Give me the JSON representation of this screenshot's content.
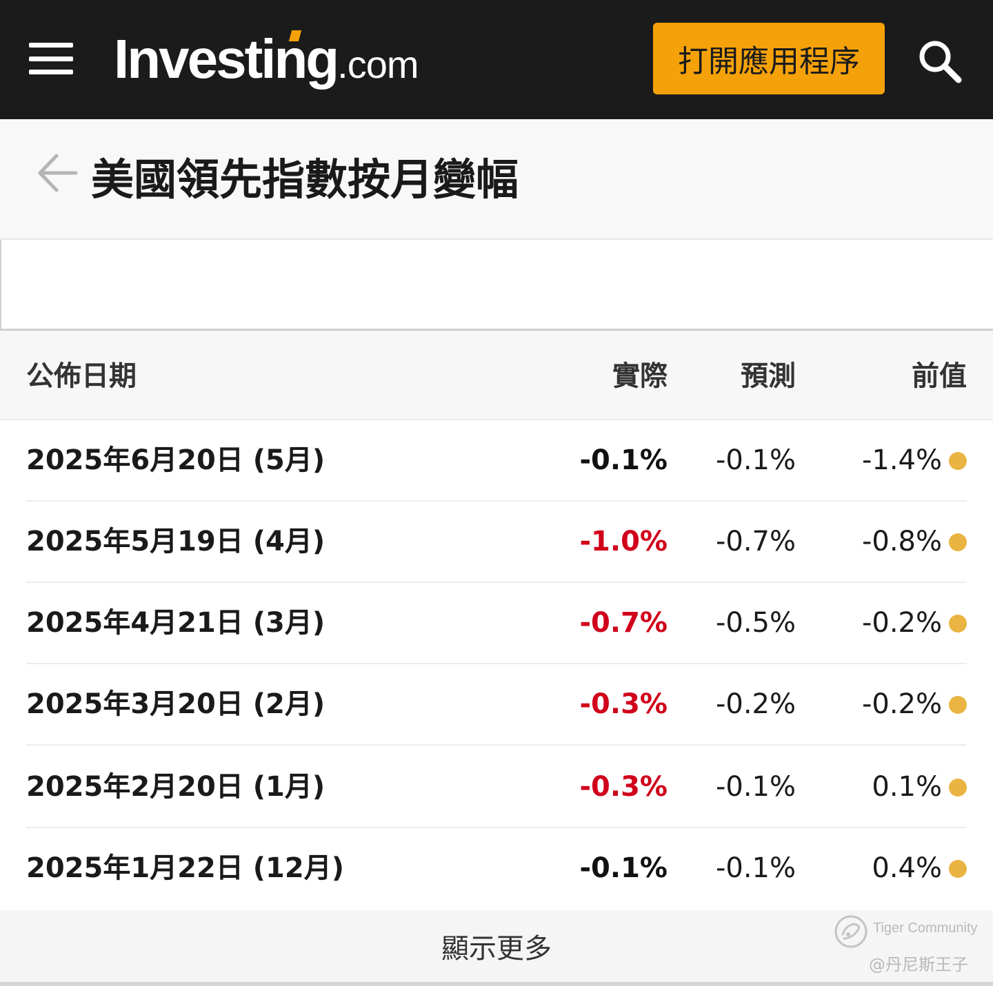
{
  "header": {
    "logo_brand": "Investing",
    "logo_tld": ".com",
    "open_app_label": "打開應用程序",
    "menu_icon": "hamburger-menu-icon",
    "search_icon": "search-icon",
    "accent_color": "#f5a20a"
  },
  "page": {
    "title": "美國領先指數按月變幅",
    "back_icon": "arrow-left-icon"
  },
  "table": {
    "columns": {
      "date": "公佈日期",
      "actual": "實際",
      "forecast": "預測",
      "previous": "前值"
    },
    "rows": [
      {
        "date": "2025年6月20日 (5月)",
        "actual": "-0.1%",
        "actual_color": "#111111",
        "forecast": "-0.1%",
        "previous": "-1.4%",
        "indicator_color": "#e9b441"
      },
      {
        "date": "2025年5月19日 (4月)",
        "actual": "-1.0%",
        "actual_color": "#d0021b",
        "forecast": "-0.7%",
        "previous": "-0.8%",
        "indicator_color": "#e9b441"
      },
      {
        "date": "2025年4月21日 (3月)",
        "actual": "-0.7%",
        "actual_color": "#d0021b",
        "forecast": "-0.5%",
        "previous": "-0.2%",
        "indicator_color": "#e9b441"
      },
      {
        "date": "2025年3月20日 (2月)",
        "actual": "-0.3%",
        "actual_color": "#d0021b",
        "forecast": "-0.2%",
        "previous": "-0.2%",
        "indicator_color": "#e9b441"
      },
      {
        "date": "2025年2月20日 (1月)",
        "actual": "-0.3%",
        "actual_color": "#d0021b",
        "forecast": "-0.1%",
        "previous": "0.1%",
        "indicator_color": "#e9b441"
      },
      {
        "date": "2025年1月22日 (12月)",
        "actual": "-0.1%",
        "actual_color": "#111111",
        "forecast": "-0.1%",
        "previous": "0.4%",
        "indicator_color": "#e9b441"
      }
    ],
    "show_more_label": "顯示更多"
  },
  "watermark": {
    "brand": "Tiger Community",
    "user": "@丹尼斯王子",
    "icon": "tiger-community-logo-icon"
  }
}
